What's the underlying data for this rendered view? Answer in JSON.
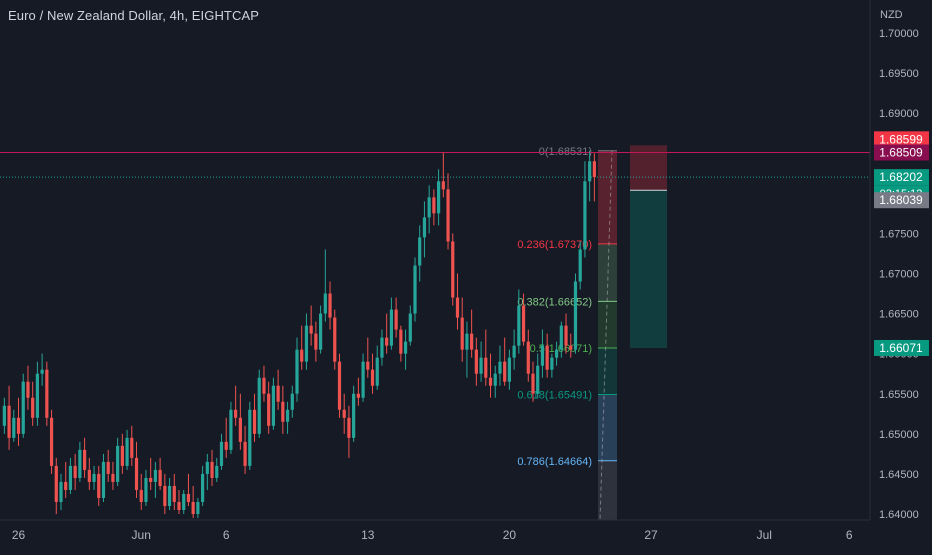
{
  "header": {
    "title": "Euro / New Zealand Dollar, 4h, EIGHTCAP",
    "currency": "NZD"
  },
  "colors": {
    "background": "#161a25",
    "up": "#26a69a",
    "down": "#ef5350",
    "axis_text": "#b2b5be",
    "fib_0": "#787b86",
    "fib_236": "#f23645",
    "fib_382": "#81c784",
    "fib_5": "#4caf50",
    "fib_618": "#089981",
    "fib_786": "#64b5f6",
    "stop_zone": "rgba(242,54,69,0.28)",
    "target_zone": "rgba(8,153,129,0.28)"
  },
  "chart_data": {
    "type": "candlestick",
    "title": "Euro / New Zealand Dollar, 4h, EIGHTCAP",
    "ylabel": "NZD",
    "ylim": [
      1.64,
      1.7
    ],
    "grid": false,
    "y_ticks": [
      "1.70000",
      "1.69500",
      "1.69000",
      "1.68500",
      "1.68000",
      "1.67500",
      "1.67000",
      "1.66500",
      "1.66000",
      "1.65500",
      "1.65000",
      "1.64500",
      "1.64000"
    ],
    "x_ticks": [
      {
        "label": "26",
        "index": 3
      },
      {
        "label": "Jun",
        "index": 29
      },
      {
        "label": "6",
        "index": 47
      },
      {
        "label": "13",
        "index": 77
      },
      {
        "label": "20",
        "index": 107
      },
      {
        "label": "27",
        "index": 137
      },
      {
        "label": "Jul",
        "index": 161
      },
      {
        "label": "6",
        "index": 179
      }
    ],
    "candles": [
      [
        1.651,
        1.6545,
        1.65,
        1.6535
      ],
      [
        1.6535,
        1.656,
        1.648,
        1.6495
      ],
      [
        1.6495,
        1.653,
        1.649,
        1.652
      ],
      [
        1.652,
        1.6545,
        1.6485,
        1.65
      ],
      [
        1.65,
        1.6575,
        1.6495,
        1.6565
      ],
      [
        1.6565,
        1.6585,
        1.653,
        1.6545
      ],
      [
        1.6545,
        1.6565,
        1.651,
        1.652
      ],
      [
        1.652,
        1.659,
        1.651,
        1.6575
      ],
      [
        1.6575,
        1.66,
        1.656,
        1.658
      ],
      [
        1.658,
        1.659,
        1.651,
        1.652
      ],
      [
        1.652,
        1.653,
        1.645,
        1.646
      ],
      [
        1.646,
        1.647,
        1.64,
        1.6415
      ],
      [
        1.6415,
        1.645,
        1.6405,
        1.644
      ],
      [
        1.644,
        1.6465,
        1.642,
        1.643
      ],
      [
        1.643,
        1.647,
        1.6425,
        1.646
      ],
      [
        1.646,
        1.6475,
        1.643,
        1.6445
      ],
      [
        1.6445,
        1.649,
        1.644,
        1.648
      ],
      [
        1.648,
        1.6495,
        1.6445,
        1.6455
      ],
      [
        1.6455,
        1.647,
        1.643,
        1.644
      ],
      [
        1.644,
        1.646,
        1.643,
        1.645
      ],
      [
        1.645,
        1.646,
        1.641,
        1.642
      ],
      [
        1.642,
        1.6475,
        1.6415,
        1.6465
      ],
      [
        1.6465,
        1.648,
        1.644,
        1.645
      ],
      [
        1.645,
        1.6465,
        1.643,
        1.644
      ],
      [
        1.644,
        1.6495,
        1.6435,
        1.6485
      ],
      [
        1.6485,
        1.65,
        1.645,
        1.646
      ],
      [
        1.646,
        1.6505,
        1.6455,
        1.6495
      ],
      [
        1.6495,
        1.651,
        1.646,
        1.647
      ],
      [
        1.647,
        1.649,
        1.642,
        1.643
      ],
      [
        1.643,
        1.645,
        1.6405,
        1.6415
      ],
      [
        1.6415,
        1.6455,
        1.641,
        1.6445
      ],
      [
        1.6445,
        1.647,
        1.643,
        1.644
      ],
      [
        1.644,
        1.6465,
        1.642,
        1.6455
      ],
      [
        1.6455,
        1.647,
        1.643,
        1.6435
      ],
      [
        1.6435,
        1.645,
        1.64,
        1.641
      ],
      [
        1.641,
        1.6445,
        1.6405,
        1.6435
      ],
      [
        1.6435,
        1.645,
        1.6405,
        1.6415
      ],
      [
        1.6415,
        1.643,
        1.64,
        1.6405
      ],
      [
        1.6405,
        1.643,
        1.64,
        1.6425
      ],
      [
        1.6425,
        1.645,
        1.641,
        1.6415
      ],
      [
        1.6415,
        1.6435,
        1.6395,
        1.64
      ],
      [
        1.64,
        1.642,
        1.6395,
        1.6415
      ],
      [
        1.6415,
        1.646,
        1.641,
        1.645
      ],
      [
        1.645,
        1.6475,
        1.643,
        1.6465
      ],
      [
        1.6465,
        1.648,
        1.6435,
        1.6445
      ],
      [
        1.6445,
        1.647,
        1.644,
        1.646
      ],
      [
        1.646,
        1.65,
        1.6455,
        1.649
      ],
      [
        1.649,
        1.652,
        1.647,
        1.648
      ],
      [
        1.648,
        1.654,
        1.6475,
        1.653
      ],
      [
        1.653,
        1.656,
        1.651,
        1.652
      ],
      [
        1.652,
        1.655,
        1.648,
        1.649
      ],
      [
        1.649,
        1.651,
        1.645,
        1.646
      ],
      [
        1.646,
        1.654,
        1.6455,
        1.653
      ],
      [
        1.653,
        1.655,
        1.649,
        1.65
      ],
      [
        1.65,
        1.658,
        1.6495,
        1.657
      ],
      [
        1.657,
        1.6585,
        1.654,
        1.655
      ],
      [
        1.655,
        1.6565,
        1.65,
        1.651
      ],
      [
        1.651,
        1.657,
        1.6505,
        1.656
      ],
      [
        1.656,
        1.658,
        1.653,
        1.654
      ],
      [
        1.654,
        1.656,
        1.65,
        1.6515
      ],
      [
        1.6515,
        1.654,
        1.65,
        1.653
      ],
      [
        1.653,
        1.656,
        1.652,
        1.655
      ],
      [
        1.655,
        1.662,
        1.654,
        1.6605
      ],
      [
        1.6605,
        1.6635,
        1.658,
        1.659
      ],
      [
        1.659,
        1.665,
        1.658,
        1.6635
      ],
      [
        1.6635,
        1.666,
        1.661,
        1.6625
      ],
      [
        1.6625,
        1.664,
        1.659,
        1.6605
      ],
      [
        1.6605,
        1.666,
        1.66,
        1.665
      ],
      [
        1.665,
        1.673,
        1.664,
        1.6675
      ],
      [
        1.6675,
        1.669,
        1.663,
        1.6645
      ],
      [
        1.6645,
        1.6655,
        1.658,
        1.659
      ],
      [
        1.659,
        1.66,
        1.652,
        1.653
      ],
      [
        1.653,
        1.655,
        1.65,
        1.652
      ],
      [
        1.652,
        1.6535,
        1.647,
        1.6495
      ],
      [
        1.6495,
        1.656,
        1.649,
        1.655
      ],
      [
        1.655,
        1.657,
        1.6535,
        1.6545
      ],
      [
        1.6545,
        1.66,
        1.654,
        1.659
      ],
      [
        1.659,
        1.662,
        1.657,
        1.658
      ],
      [
        1.658,
        1.66,
        1.655,
        1.656
      ],
      [
        1.656,
        1.661,
        1.6555,
        1.6595
      ],
      [
        1.6595,
        1.663,
        1.6585,
        1.662
      ],
      [
        1.662,
        1.665,
        1.66,
        1.661
      ],
      [
        1.661,
        1.667,
        1.6605,
        1.6655
      ],
      [
        1.6655,
        1.667,
        1.662,
        1.663
      ],
      [
        1.663,
        1.6635,
        1.659,
        1.66
      ],
      [
        1.66,
        1.663,
        1.658,
        1.6615
      ],
      [
        1.6615,
        1.666,
        1.661,
        1.665
      ],
      [
        1.665,
        1.672,
        1.664,
        1.671
      ],
      [
        1.671,
        1.676,
        1.669,
        1.6745
      ],
      [
        1.6745,
        1.679,
        1.672,
        1.677
      ],
      [
        1.677,
        1.681,
        1.675,
        1.6795
      ],
      [
        1.6795,
        1.6805,
        1.676,
        1.6775
      ],
      [
        1.6775,
        1.683,
        1.676,
        1.6815
      ],
      [
        1.6815,
        1.68509,
        1.6795,
        1.6805
      ],
      [
        1.6805,
        1.6825,
        1.673,
        1.674
      ],
      [
        1.674,
        1.675,
        1.666,
        1.667
      ],
      [
        1.667,
        1.67,
        1.663,
        1.6645
      ],
      [
        1.6645,
        1.667,
        1.659,
        1.6605
      ],
      [
        1.6605,
        1.664,
        1.657,
        1.6625
      ],
      [
        1.6625,
        1.6655,
        1.6595,
        1.6605
      ],
      [
        1.6605,
        1.662,
        1.656,
        1.6575
      ],
      [
        1.6575,
        1.6615,
        1.6565,
        1.6595
      ],
      [
        1.6595,
        1.663,
        1.656,
        1.657
      ],
      [
        1.657,
        1.66,
        1.6545,
        1.656
      ],
      [
        1.656,
        1.6585,
        1.6545,
        1.6575
      ],
      [
        1.6575,
        1.661,
        1.656,
        1.659
      ],
      [
        1.659,
        1.662,
        1.656,
        1.6565
      ],
      [
        1.6565,
        1.6605,
        1.6555,
        1.6595
      ],
      [
        1.6595,
        1.663,
        1.658,
        1.661
      ],
      [
        1.661,
        1.668,
        1.66,
        1.666
      ],
      [
        1.666,
        1.6675,
        1.661,
        1.6615
      ],
      [
        1.6615,
        1.663,
        1.6565,
        1.6575
      ],
      [
        1.6575,
        1.659,
        1.654,
        1.655
      ],
      [
        1.655,
        1.66,
        1.6545,
        1.6585
      ],
      [
        1.6585,
        1.663,
        1.657,
        1.661
      ],
      [
        1.661,
        1.6625,
        1.657,
        1.658
      ],
      [
        1.658,
        1.66,
        1.657,
        1.6595
      ],
      [
        1.6595,
        1.6615,
        1.6585,
        1.6605
      ],
      [
        1.6605,
        1.664,
        1.6595,
        1.6635
      ],
      [
        1.6635,
        1.665,
        1.66,
        1.661
      ],
      [
        1.661,
        1.6625,
        1.6595,
        1.6605
      ],
      [
        1.6605,
        1.67,
        1.66,
        1.669
      ],
      [
        1.669,
        1.674,
        1.668,
        1.673
      ],
      [
        1.673,
        1.684,
        1.672,
        1.6815
      ],
      [
        1.6815,
        1.68531,
        1.679,
        1.684
      ],
      [
        1.684,
        1.685,
        1.679,
        1.68202
      ]
    ],
    "fibonacci": [
      {
        "ratio": "0",
        "price": 1.68531,
        "label": "0(1.68531)"
      },
      {
        "ratio": "0.236",
        "price": 1.6737,
        "label": "0.236(1.67370)"
      },
      {
        "ratio": "0.382",
        "price": 1.66652,
        "label": "0.382(1.66652)"
      },
      {
        "ratio": "0.5",
        "price": 1.66071,
        "label": "0.5(1.66071)"
      },
      {
        "ratio": "0.618",
        "price": 1.65491,
        "label": "0.618(1.65491)"
      },
      {
        "ratio": "0.786",
        "price": 1.64664,
        "label": "0.786(1.64664)"
      }
    ],
    "short_position": {
      "entry": 1.68039,
      "stop": 1.68599,
      "target": 1.66071
    },
    "price_labels": [
      {
        "text": "1.68599",
        "price": 1.68599,
        "color": "#f23645"
      },
      {
        "text": "1.68509",
        "price": 1.68509,
        "color": "#880e4f"
      },
      {
        "text": "1.68202",
        "price": 1.68202,
        "color": "#089981"
      },
      {
        "text": "02:15:12",
        "price": 1.68202,
        "color": "#089981",
        "is_countdown": true
      },
      {
        "text": "1.68039",
        "price": 1.68039,
        "color": "#787b86"
      },
      {
        "text": "1.66071",
        "price": 1.66071,
        "color": "#089981"
      }
    ],
    "horizontal_line": 1.68509,
    "current_price": 1.68202
  }
}
